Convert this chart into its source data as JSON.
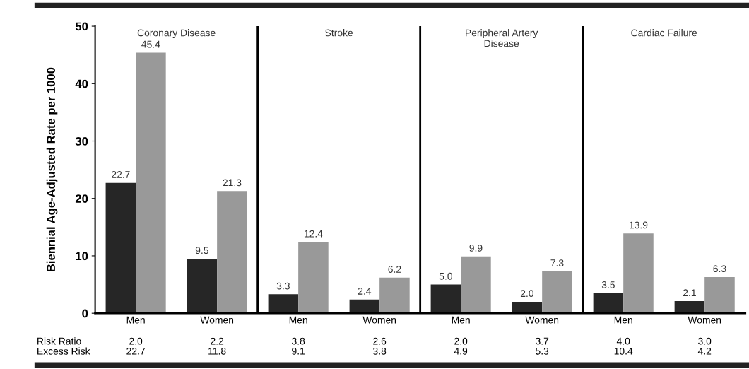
{
  "chart_data": {
    "type": "bar",
    "ylabel": "Biennial Age-Adjusted Rate per 1000",
    "categories": [
      "Men",
      "Women",
      "Men",
      "Women",
      "Men",
      "Women",
      "Men",
      "Women"
    ],
    "series": [
      {
        "color": "#262626",
        "values": [
          22.7,
          9.5,
          3.3,
          2.4,
          5.0,
          2.0,
          3.5,
          2.1
        ],
        "value_labels": [
          "22.7",
          "9.5",
          "3.3",
          "2.4",
          "5.0",
          "2.0",
          "3.5",
          "2.1"
        ]
      },
      {
        "color": "#999999",
        "values": [
          45.4,
          21.3,
          12.4,
          6.2,
          9.9,
          7.3,
          13.9,
          6.3
        ],
        "value_labels": [
          "45.4",
          "21.3",
          "12.4",
          "6.2",
          "9.9",
          "7.3",
          "13.9",
          "6.3"
        ]
      }
    ],
    "ylim": [
      0,
      50
    ],
    "yticks": [
      0,
      10,
      20,
      30,
      40,
      50
    ],
    "grid": false,
    "legend": false,
    "annotations": [
      "Coronary Disease",
      "Stroke",
      "Peripheral Artery\nDisease",
      "Cardiac Failure",
      "Risk Ratio",
      "2.0",
      "2.2",
      "3.8",
      "2.6",
      "2.0",
      "3.7",
      "4.0",
      "3.0",
      "Excess Risk",
      "22.7",
      "11.8",
      "9.1",
      "3.8",
      "4.9",
      "5.3",
      "10.4",
      "4.2"
    ]
  }
}
